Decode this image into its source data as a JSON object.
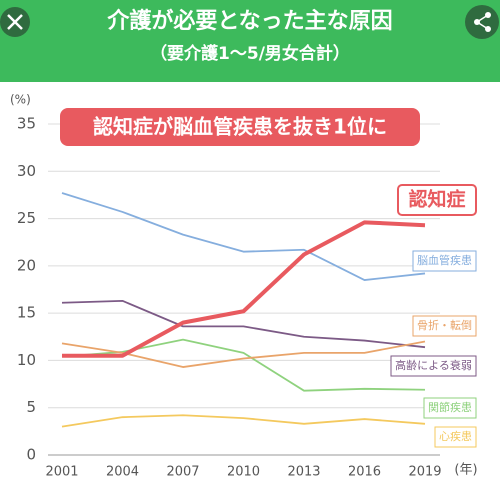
{
  "chart_data": {
    "type": "line",
    "title": "介護が必要となった主な原因",
    "subtitle": "（要介護1～5/男女合計）",
    "annotation": "認知症が脳血管疾患を抜き1位に",
    "y_label": "(%)",
    "x_label": "(年)",
    "categories": [
      "2001",
      "2004",
      "2007",
      "2010",
      "2013",
      "2016",
      "2019"
    ],
    "ylim": [
      0,
      35
    ],
    "yticks": [
      0,
      5,
      10,
      15,
      20,
      25,
      30,
      35
    ],
    "grid": true,
    "series": [
      {
        "name": "認知症",
        "color": "#e85a5f",
        "values": [
          10.5,
          10.5,
          14.0,
          15.2,
          21.2,
          24.6,
          24.3
        ]
      },
      {
        "name": "脳血管疾患",
        "color": "#85aede",
        "values": [
          27.7,
          25.7,
          23.3,
          21.5,
          21.7,
          18.5,
          19.2
        ]
      },
      {
        "name": "骨折・転倒",
        "color": "#e9a46a",
        "values": [
          11.8,
          10.8,
          9.3,
          10.2,
          10.8,
          10.8,
          12.0
        ]
      },
      {
        "name": "高齢による衰弱",
        "color": "#7c5a86",
        "values": [
          16.1,
          16.3,
          13.6,
          13.6,
          12.5,
          12.1,
          11.4
        ]
      },
      {
        "name": "関節疾患",
        "color": "#8fd27e",
        "values": [
          10.4,
          10.9,
          12.2,
          10.8,
          6.8,
          7.0,
          6.9
        ]
      },
      {
        "name": "心疾患",
        "color": "#f4c95e",
        "values": [
          3.0,
          4.0,
          4.2,
          3.9,
          3.3,
          3.8,
          3.3
        ]
      }
    ]
  }
}
